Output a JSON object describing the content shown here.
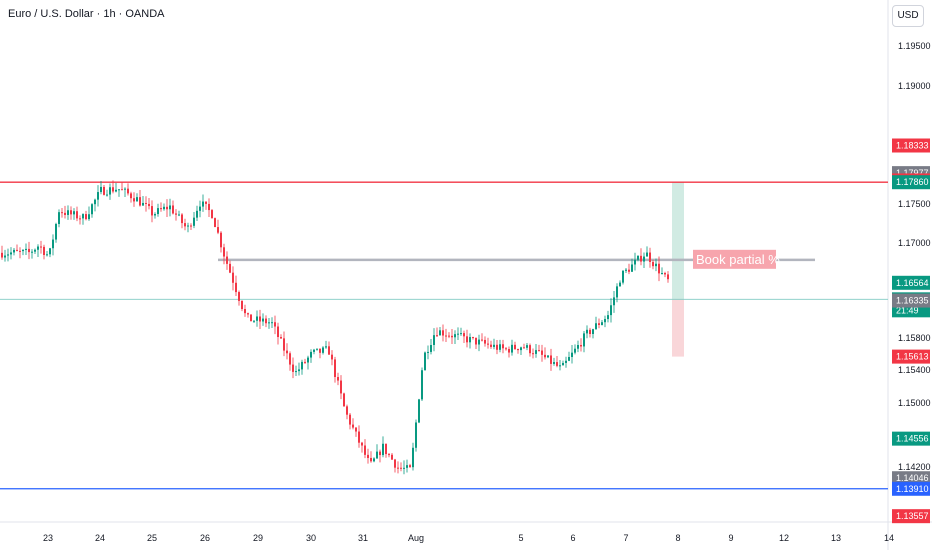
{
  "header": {
    "title": "Euro / U.S. Dollar · 1h · OANDA",
    "currency_button": "USD"
  },
  "colors": {
    "up": "#089981",
    "down": "#f23645",
    "resistance_line": "#f23645",
    "support_line": "#2962ff",
    "partial_line": "#b2b5be",
    "current_price_line": "#80cbc4",
    "target_zone": "#d1ebe3",
    "stop_zone": "#f9d6d9",
    "annotation_bg": "#f7a5ad",
    "gray_badge": "#787b86"
  },
  "chart_data": {
    "type": "candlestick",
    "title": "Euro / U.S. Dollar · 1h · OANDA",
    "ylim": [
      1.1325,
      1.1995
    ],
    "x_ticks": [
      "23",
      "24",
      "25",
      "26",
      "29",
      "30",
      "31",
      "Aug",
      "5",
      "6",
      "7",
      "8",
      "9",
      "12",
      "13",
      "14"
    ],
    "y_ticks": [
      "1.19500",
      "1.19000",
      "1.17500",
      "1.17000",
      "1.15800",
      "1.15400",
      "1.15000",
      "1.14200"
    ],
    "path_anchors": [
      [
        "23",
        1.1695
      ],
      [
        "23",
        1.1705
      ],
      [
        "23",
        1.169
      ],
      [
        "23",
        1.175
      ],
      [
        "23",
        1.1745
      ],
      [
        "24",
        1.174
      ],
      [
        "24",
        1.1775
      ],
      [
        "24",
        1.1778
      ],
      [
        "25",
        1.1765
      ],
      [
        "25",
        1.1745
      ],
      [
        "25",
        1.1755
      ],
      [
        "26",
        1.1725
      ],
      [
        "26",
        1.176
      ],
      [
        "26",
        1.1745
      ],
      [
        "26",
        1.169
      ],
      [
        "29",
        1.161
      ],
      [
        "29",
        1.1605
      ],
      [
        "30",
        1.154
      ],
      [
        "30",
        1.1565
      ],
      [
        "30",
        1.157
      ],
      [
        "31",
        1.149
      ],
      [
        "31",
        1.1455
      ],
      [
        "31",
        1.142
      ],
      [
        "31",
        1.1445
      ],
      [
        "Aug",
        1.1418
      ],
      [
        "Aug",
        1.1415
      ],
      [
        "Aug",
        1.156
      ],
      [
        "Aug",
        1.1595
      ],
      [
        "5",
        1.157
      ],
      [
        "5",
        1.1575
      ],
      [
        "5",
        1.1565
      ],
      [
        "6",
        1.1545
      ],
      [
        "6",
        1.159
      ],
      [
        "7",
        1.1615
      ],
      [
        "7",
        1.1665
      ],
      [
        "7",
        1.168
      ],
      [
        "7",
        1.1695
      ],
      [
        "8",
        1.166
      ],
      [
        "8",
        1.1638
      ]
    ],
    "horizontal_lines": [
      {
        "price": 1.1786,
        "role": "resistance"
      },
      {
        "price": 1.1391,
        "role": "support"
      },
      {
        "price": 1.16351,
        "role": "current"
      },
      {
        "price": 1.1686,
        "role": "partial-target"
      }
    ],
    "position_tool": {
      "entry": 1.16351,
      "target": 1.1786,
      "stop": 1.15613
    },
    "annotations": [
      {
        "text": "Book partial %",
        "price": 1.1686
      }
    ],
    "price_badges": [
      {
        "label": "1.18333",
        "price": 1.18333,
        "color": "red"
      },
      {
        "label": "1.17977",
        "price": 1.17977,
        "color": "gray"
      },
      {
        "label": "1.17883",
        "price": 1.17883,
        "color": "red"
      },
      {
        "label": "1.17860",
        "price": 1.1786,
        "color": "green"
      },
      {
        "label": "1.16564",
        "price": 1.16564,
        "color": "green"
      },
      {
        "label": "1.16351",
        "sub": "21:49",
        "price": 1.16351,
        "color": "green"
      },
      {
        "label": "1.16335",
        "price": 1.16335,
        "color": "gray"
      },
      {
        "label": "1.15613",
        "price": 1.15613,
        "color": "red"
      },
      {
        "label": "1.14556",
        "price": 1.14556,
        "color": "green"
      },
      {
        "label": "1.14046",
        "price": 1.14046,
        "color": "gray"
      },
      {
        "label": "1.13910",
        "price": 1.1391,
        "color": "blue"
      },
      {
        "label": "1.13557",
        "price": 1.13557,
        "color": "red"
      }
    ]
  }
}
